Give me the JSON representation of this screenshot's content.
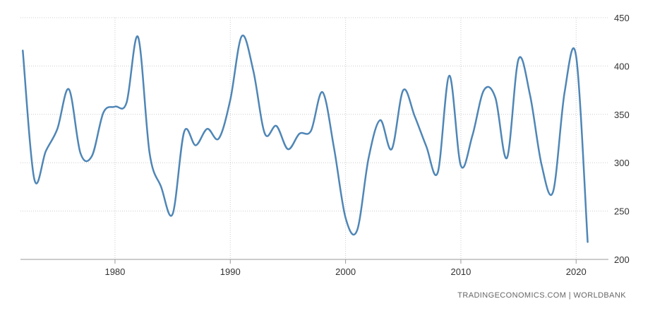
{
  "chart_data": {
    "type": "line",
    "title": "",
    "xlabel": "",
    "ylabel": "",
    "x": [
      1972,
      1973,
      1974,
      1975,
      1976,
      1977,
      1978,
      1979,
      1980,
      1981,
      1982,
      1983,
      1984,
      1985,
      1986,
      1987,
      1988,
      1989,
      1990,
      1991,
      1992,
      1993,
      1994,
      1995,
      1996,
      1997,
      1998,
      1999,
      2000,
      2001,
      2002,
      2003,
      2004,
      2005,
      2006,
      2007,
      2008,
      2009,
      2010,
      2011,
      2012,
      2013,
      2014,
      2015,
      2016,
      2017,
      2018,
      2019,
      2020,
      2021
    ],
    "series": [
      {
        "values": [
          416,
          283,
          312,
          335,
          376,
          310,
          307,
          352,
          358,
          362,
          430,
          310,
          275,
          247,
          332,
          318,
          335,
          325,
          365,
          431,
          395,
          330,
          338,
          314,
          330,
          333,
          373,
          315,
          243,
          230,
          305,
          344,
          314,
          375,
          348,
          317,
          290,
          390,
          297,
          328,
          375,
          367,
          305,
          407,
          370,
          298,
          270,
          373,
          410,
          218
        ]
      }
    ],
    "xlim": [
      1971.8,
      2022.8
    ],
    "ylim": [
      200,
      450
    ],
    "x_ticks": [
      1980,
      1990,
      2000,
      2010,
      2020
    ],
    "y_ticks": [
      200,
      250,
      300,
      350,
      400,
      450
    ],
    "x_tick_labels": [
      "1980",
      "1990",
      "2000",
      "2010",
      "2020"
    ],
    "y_tick_labels": [
      "200",
      "250",
      "300",
      "350",
      "400",
      "450"
    ],
    "grid": true,
    "y_axis_side": "right",
    "line_color": "#4f86b6",
    "grid_color": "#cccccc"
  },
  "source": "TRADINGECONOMICS.COM  |  WORLDBANK"
}
